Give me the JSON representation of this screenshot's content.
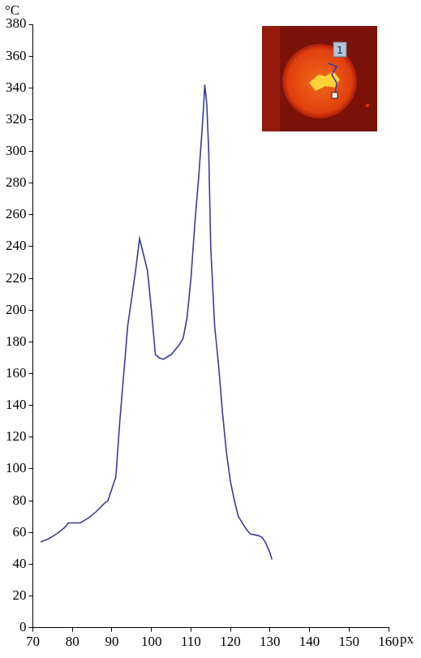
{
  "chart_data": {
    "type": "line",
    "x_label": "px",
    "y_label": "°C",
    "x": [
      72,
      74,
      76,
      78,
      79,
      82,
      84,
      86,
      88,
      89,
      91,
      92,
      93,
      94,
      96,
      97,
      98,
      99,
      100,
      101,
      102,
      103,
      105,
      107,
      108,
      109,
      110,
      111,
      112,
      113,
      113.5,
      114,
      114.5,
      115,
      116,
      117,
      118,
      119,
      120,
      121,
      122,
      123,
      124,
      125,
      127,
      128,
      129,
      130,
      130.5
    ],
    "values": [
      54,
      56,
      59,
      63,
      66,
      66,
      69,
      73,
      78,
      80,
      95,
      130,
      160,
      190,
      225,
      245,
      235,
      225,
      200,
      172,
      170,
      169,
      172,
      178,
      182,
      195,
      220,
      255,
      285,
      320,
      342,
      330,
      300,
      240,
      190,
      165,
      135,
      110,
      92,
      80,
      70,
      66,
      62,
      59,
      58,
      57,
      53,
      47,
      43
    ],
    "color": "#3a3a9e",
    "xlim": [
      70,
      160
    ],
    "xticks": [
      70,
      80,
      90,
      100,
      110,
      120,
      130,
      140,
      150,
      160
    ],
    "ylim": [
      0,
      380
    ],
    "yticks": [
      0,
      20,
      40,
      60,
      80,
      100,
      120,
      140,
      160,
      180,
      200,
      220,
      240,
      260,
      280,
      300,
      320,
      340,
      360,
      380
    ],
    "grid": false,
    "annotations": [
      "1"
    ]
  }
}
